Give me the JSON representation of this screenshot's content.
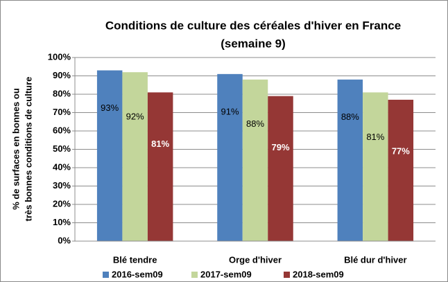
{
  "chart_data": {
    "type": "bar",
    "title": "Conditions de culture des céréales d'hiver en France",
    "subtitle": "(semaine 9)",
    "ylabel": [
      "% de surfaces en bonnes ou",
      "très bonnes conditions de culture"
    ],
    "categories": [
      "Blé tendre",
      "Orge d'hiver",
      "Blé dur d'hiver"
    ],
    "series": [
      {
        "name": "2016-sem09",
        "color": "#4f81bd",
        "values": [
          93,
          91,
          88
        ],
        "value_labels": [
          "93%",
          "91%",
          "88%"
        ]
      },
      {
        "name": "2017-sem09",
        "color": "#c3d69b",
        "values": [
          92,
          88,
          81
        ],
        "value_labels": [
          "92%",
          "88%",
          "81%"
        ]
      },
      {
        "name": "2018-sem09",
        "color": "#953735",
        "values": [
          81,
          79,
          77
        ],
        "value_labels": [
          "81%",
          "79%",
          "77%"
        ]
      }
    ],
    "ylim": [
      0,
      100
    ],
    "yticks": [
      {
        "value": 0,
        "label": "0%"
      },
      {
        "value": 10,
        "label": "10%"
      },
      {
        "value": 20,
        "label": "20%"
      },
      {
        "value": 30,
        "label": "30%"
      },
      {
        "value": 40,
        "label": "40%"
      },
      {
        "value": 50,
        "label": "50%"
      },
      {
        "value": 60,
        "label": "60%"
      },
      {
        "value": 70,
        "label": "70%"
      },
      {
        "value": 80,
        "label": "80%"
      },
      {
        "value": 90,
        "label": "90%"
      },
      {
        "value": 100,
        "label": "100%"
      }
    ],
    "grid": true,
    "legend": "bottom"
  }
}
